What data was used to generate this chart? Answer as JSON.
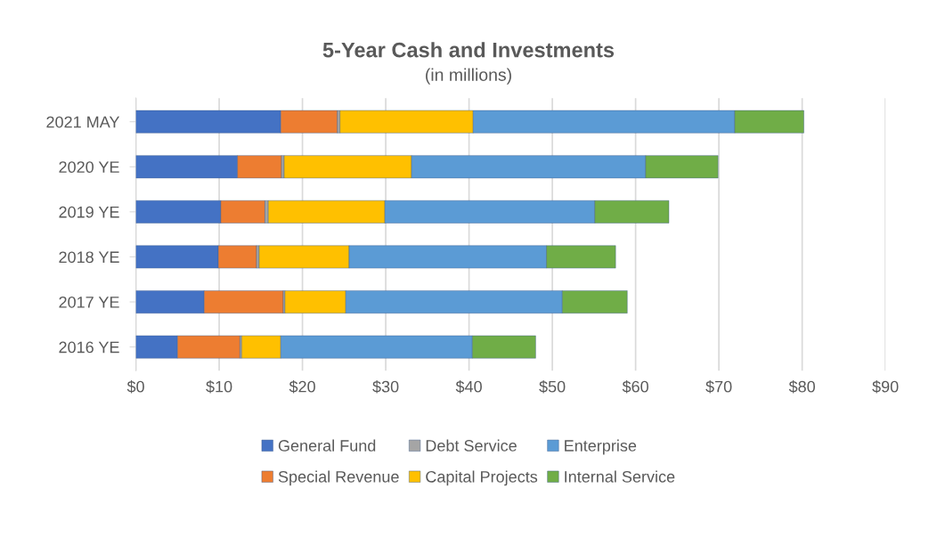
{
  "chart_data": {
    "type": "bar",
    "orientation": "horizontal",
    "stacked": true,
    "title": "5-Year Cash and Investments",
    "subtitle": "(in millions)",
    "categories": [
      "2021 MAY",
      "2020 YE",
      "2019 YE",
      "2018 YE",
      "2017 YE",
      "2016 YE"
    ],
    "series": [
      {
        "name": "General Fund",
        "color": "#4472c4",
        "values": [
          17.4,
          12.2,
          10.2,
          9.9,
          8.2,
          5.0
        ]
      },
      {
        "name": "Special Revenue",
        "color": "#ed7d31",
        "values": [
          6.8,
          5.3,
          5.3,
          4.6,
          9.5,
          7.5
        ]
      },
      {
        "name": "Debt Service",
        "color": "#a5a5a5",
        "values": [
          0.3,
          0.3,
          0.4,
          0.3,
          0.2,
          0.2
        ]
      },
      {
        "name": "Capital Projects",
        "color": "#ffc000",
        "values": [
          16.0,
          15.3,
          14.0,
          10.8,
          7.3,
          4.7
        ]
      },
      {
        "name": "Enterprise",
        "color": "#5b9bd5",
        "values": [
          31.4,
          28.1,
          25.2,
          23.7,
          26.0,
          23.0
        ]
      },
      {
        "name": "Internal Service",
        "color": "#70ad47",
        "values": [
          8.3,
          8.7,
          8.9,
          8.3,
          7.8,
          7.6
        ]
      }
    ],
    "xlim": [
      0,
      90
    ],
    "xticks": [
      {
        "value": 0,
        "label": "$0"
      },
      {
        "value": 10,
        "label": "$10"
      },
      {
        "value": 20,
        "label": "$20"
      },
      {
        "value": 30,
        "label": "$30"
      },
      {
        "value": 40,
        "label": "$40"
      },
      {
        "value": 50,
        "label": "$50"
      },
      {
        "value": 60,
        "label": "$60"
      },
      {
        "value": 70,
        "label": "$70"
      },
      {
        "value": 80,
        "label": "$80"
      },
      {
        "value": 90,
        "label": "$90"
      }
    ],
    "grid": "x",
    "legend": "bottom"
  }
}
